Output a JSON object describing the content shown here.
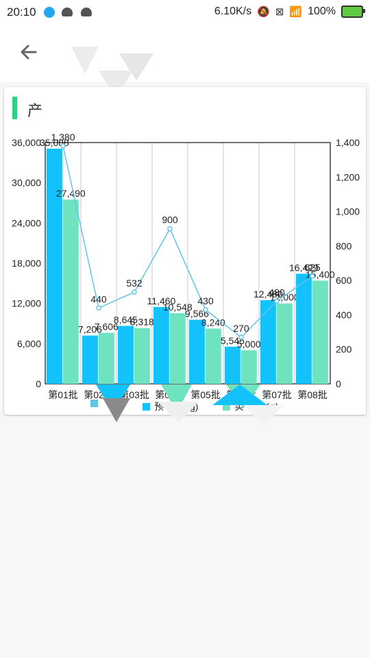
{
  "status_bar": {
    "time": "20:10",
    "network_speed": "6.10K/s",
    "battery": "100%",
    "icons": [
      "app-circle-icon",
      "android-icon",
      "android-icon",
      "mute-icon",
      "sim-icon",
      "wifi-icon",
      "battery-charging-icon"
    ]
  },
  "appbar": {
    "back_icon": "arrow-back-icon"
  },
  "card": {
    "title": "产",
    "accent_color": "#2fcf85"
  },
  "chart_data": {
    "type": "bar",
    "categories": [
      "第01批",
      "第02批",
      "第03批",
      "第04批",
      "第05批",
      "第06批",
      "第07批",
      "第08批"
    ],
    "series": [
      {
        "name": "预",
        "unit_suffix": "(Kg)",
        "color": "#14c2fb",
        "values": [
          35088,
          7206,
          8645,
          11460,
          9566,
          5545,
          12480,
          16429
        ]
      },
      {
        "name": "实",
        "unit_suffix": "(Kg)",
        "color": "#6fe3c0",
        "values": [
          27490,
          7606,
          8318,
          10548,
          8240,
          5000,
          12000,
          15400
        ]
      },
      {
        "name": "",
        "type": "line",
        "axis": "right",
        "color": "#63c4e6",
        "values": [
          1380,
          440,
          532,
          900,
          430,
          270,
          480,
          625
        ]
      }
    ],
    "left_axis": {
      "ylim": [
        0,
        36000
      ],
      "ticks": [
        "0",
        "6,000",
        "12,000",
        "18,000",
        "24,000",
        "30,000",
        "36,000"
      ]
    },
    "right_axis": {
      "ylim": [
        0,
        1400
      ],
      "ticks": [
        "0",
        "200",
        "400",
        "600",
        "800",
        "1,000",
        "1,200",
        "1,400"
      ]
    },
    "bar_labels_1": [
      "35,088",
      "7,206",
      "8,645",
      "11,460",
      "9,566",
      "5,545",
      "12,480",
      "16,429"
    ],
    "bar_labels_2": [
      "27,490",
      "7,606",
      "8,318",
      "10,548",
      "8,240",
      "5,000",
      "12,000",
      "15,400"
    ],
    "line_labels": [
      "1,380",
      "440",
      "532",
      "900",
      "430",
      "270",
      "480",
      "625"
    ],
    "legend": {
      "placement": "bottom"
    },
    "grid": "vertical"
  }
}
